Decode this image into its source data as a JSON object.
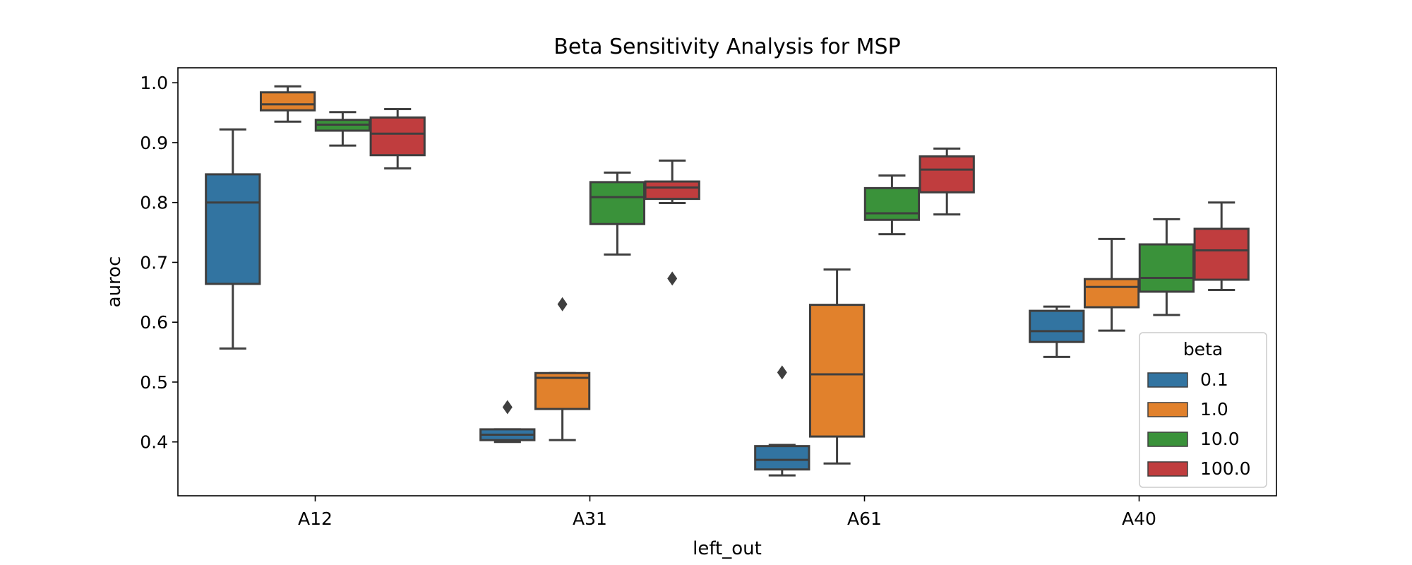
{
  "chart_data": {
    "type": "box",
    "title": "Beta Sensitivity Analysis for MSP",
    "xlabel": "left_out",
    "ylabel": "auroc",
    "categories": [
      "A12",
      "A31",
      "A61",
      "A40"
    ],
    "ylim": [
      0.31,
      1.025
    ],
    "yticks": [
      "0.4",
      "0.5",
      "0.6",
      "0.7",
      "0.8",
      "0.9",
      "1.0"
    ],
    "grid": false,
    "legend": {
      "title": "beta",
      "position": "lower-right"
    },
    "series": [
      {
        "name": "0.1",
        "color": "#3274a1",
        "boxes": [
          {
            "whislo": 0.556,
            "q1": 0.664,
            "med": 0.8,
            "q3": 0.847,
            "whishi": 0.922,
            "fliers": []
          },
          {
            "whislo": 0.4,
            "q1": 0.403,
            "med": 0.412,
            "q3": 0.421,
            "whishi": 0.421,
            "fliers": [
              0.458
            ]
          },
          {
            "whislo": 0.344,
            "q1": 0.354,
            "med": 0.37,
            "q3": 0.393,
            "whishi": 0.395,
            "fliers": [
              0.516
            ]
          },
          {
            "whislo": 0.542,
            "q1": 0.567,
            "med": 0.585,
            "q3": 0.619,
            "whishi": 0.626,
            "fliers": []
          }
        ]
      },
      {
        "name": "1.0",
        "color": "#e1812c",
        "boxes": [
          {
            "whislo": 0.935,
            "q1": 0.954,
            "med": 0.964,
            "q3": 0.984,
            "whishi": 0.994,
            "fliers": []
          },
          {
            "whislo": 0.403,
            "q1": 0.455,
            "med": 0.507,
            "q3": 0.515,
            "whishi": 0.515,
            "fliers": [
              0.63
            ]
          },
          {
            "whislo": 0.364,
            "q1": 0.409,
            "med": 0.513,
            "q3": 0.629,
            "whishi": 0.688,
            "fliers": []
          },
          {
            "whislo": 0.586,
            "q1": 0.625,
            "med": 0.659,
            "q3": 0.672,
            "whishi": 0.739,
            "fliers": []
          }
        ]
      },
      {
        "name": "10.0",
        "color": "#3a923a",
        "boxes": [
          {
            "whislo": 0.895,
            "q1": 0.92,
            "med": 0.93,
            "q3": 0.938,
            "whishi": 0.951,
            "fliers": []
          },
          {
            "whislo": 0.713,
            "q1": 0.764,
            "med": 0.809,
            "q3": 0.834,
            "whishi": 0.85,
            "fliers": []
          },
          {
            "whislo": 0.747,
            "q1": 0.771,
            "med": 0.782,
            "q3": 0.824,
            "whishi": 0.845,
            "fliers": []
          },
          {
            "whislo": 0.612,
            "q1": 0.651,
            "med": 0.674,
            "q3": 0.73,
            "whishi": 0.772,
            "fliers": []
          }
        ]
      },
      {
        "name": "100.0",
        "color": "#c03d3e",
        "boxes": [
          {
            "whislo": 0.857,
            "q1": 0.879,
            "med": 0.915,
            "q3": 0.942,
            "whishi": 0.956,
            "fliers": []
          },
          {
            "whislo": 0.799,
            "q1": 0.806,
            "med": 0.825,
            "q3": 0.835,
            "whishi": 0.87,
            "fliers": [
              0.673
            ]
          },
          {
            "whislo": 0.78,
            "q1": 0.817,
            "med": 0.855,
            "q3": 0.877,
            "whishi": 0.89,
            "fliers": []
          },
          {
            "whislo": 0.654,
            "q1": 0.671,
            "med": 0.72,
            "q3": 0.756,
            "whishi": 0.8,
            "fliers": []
          }
        ]
      }
    ]
  }
}
